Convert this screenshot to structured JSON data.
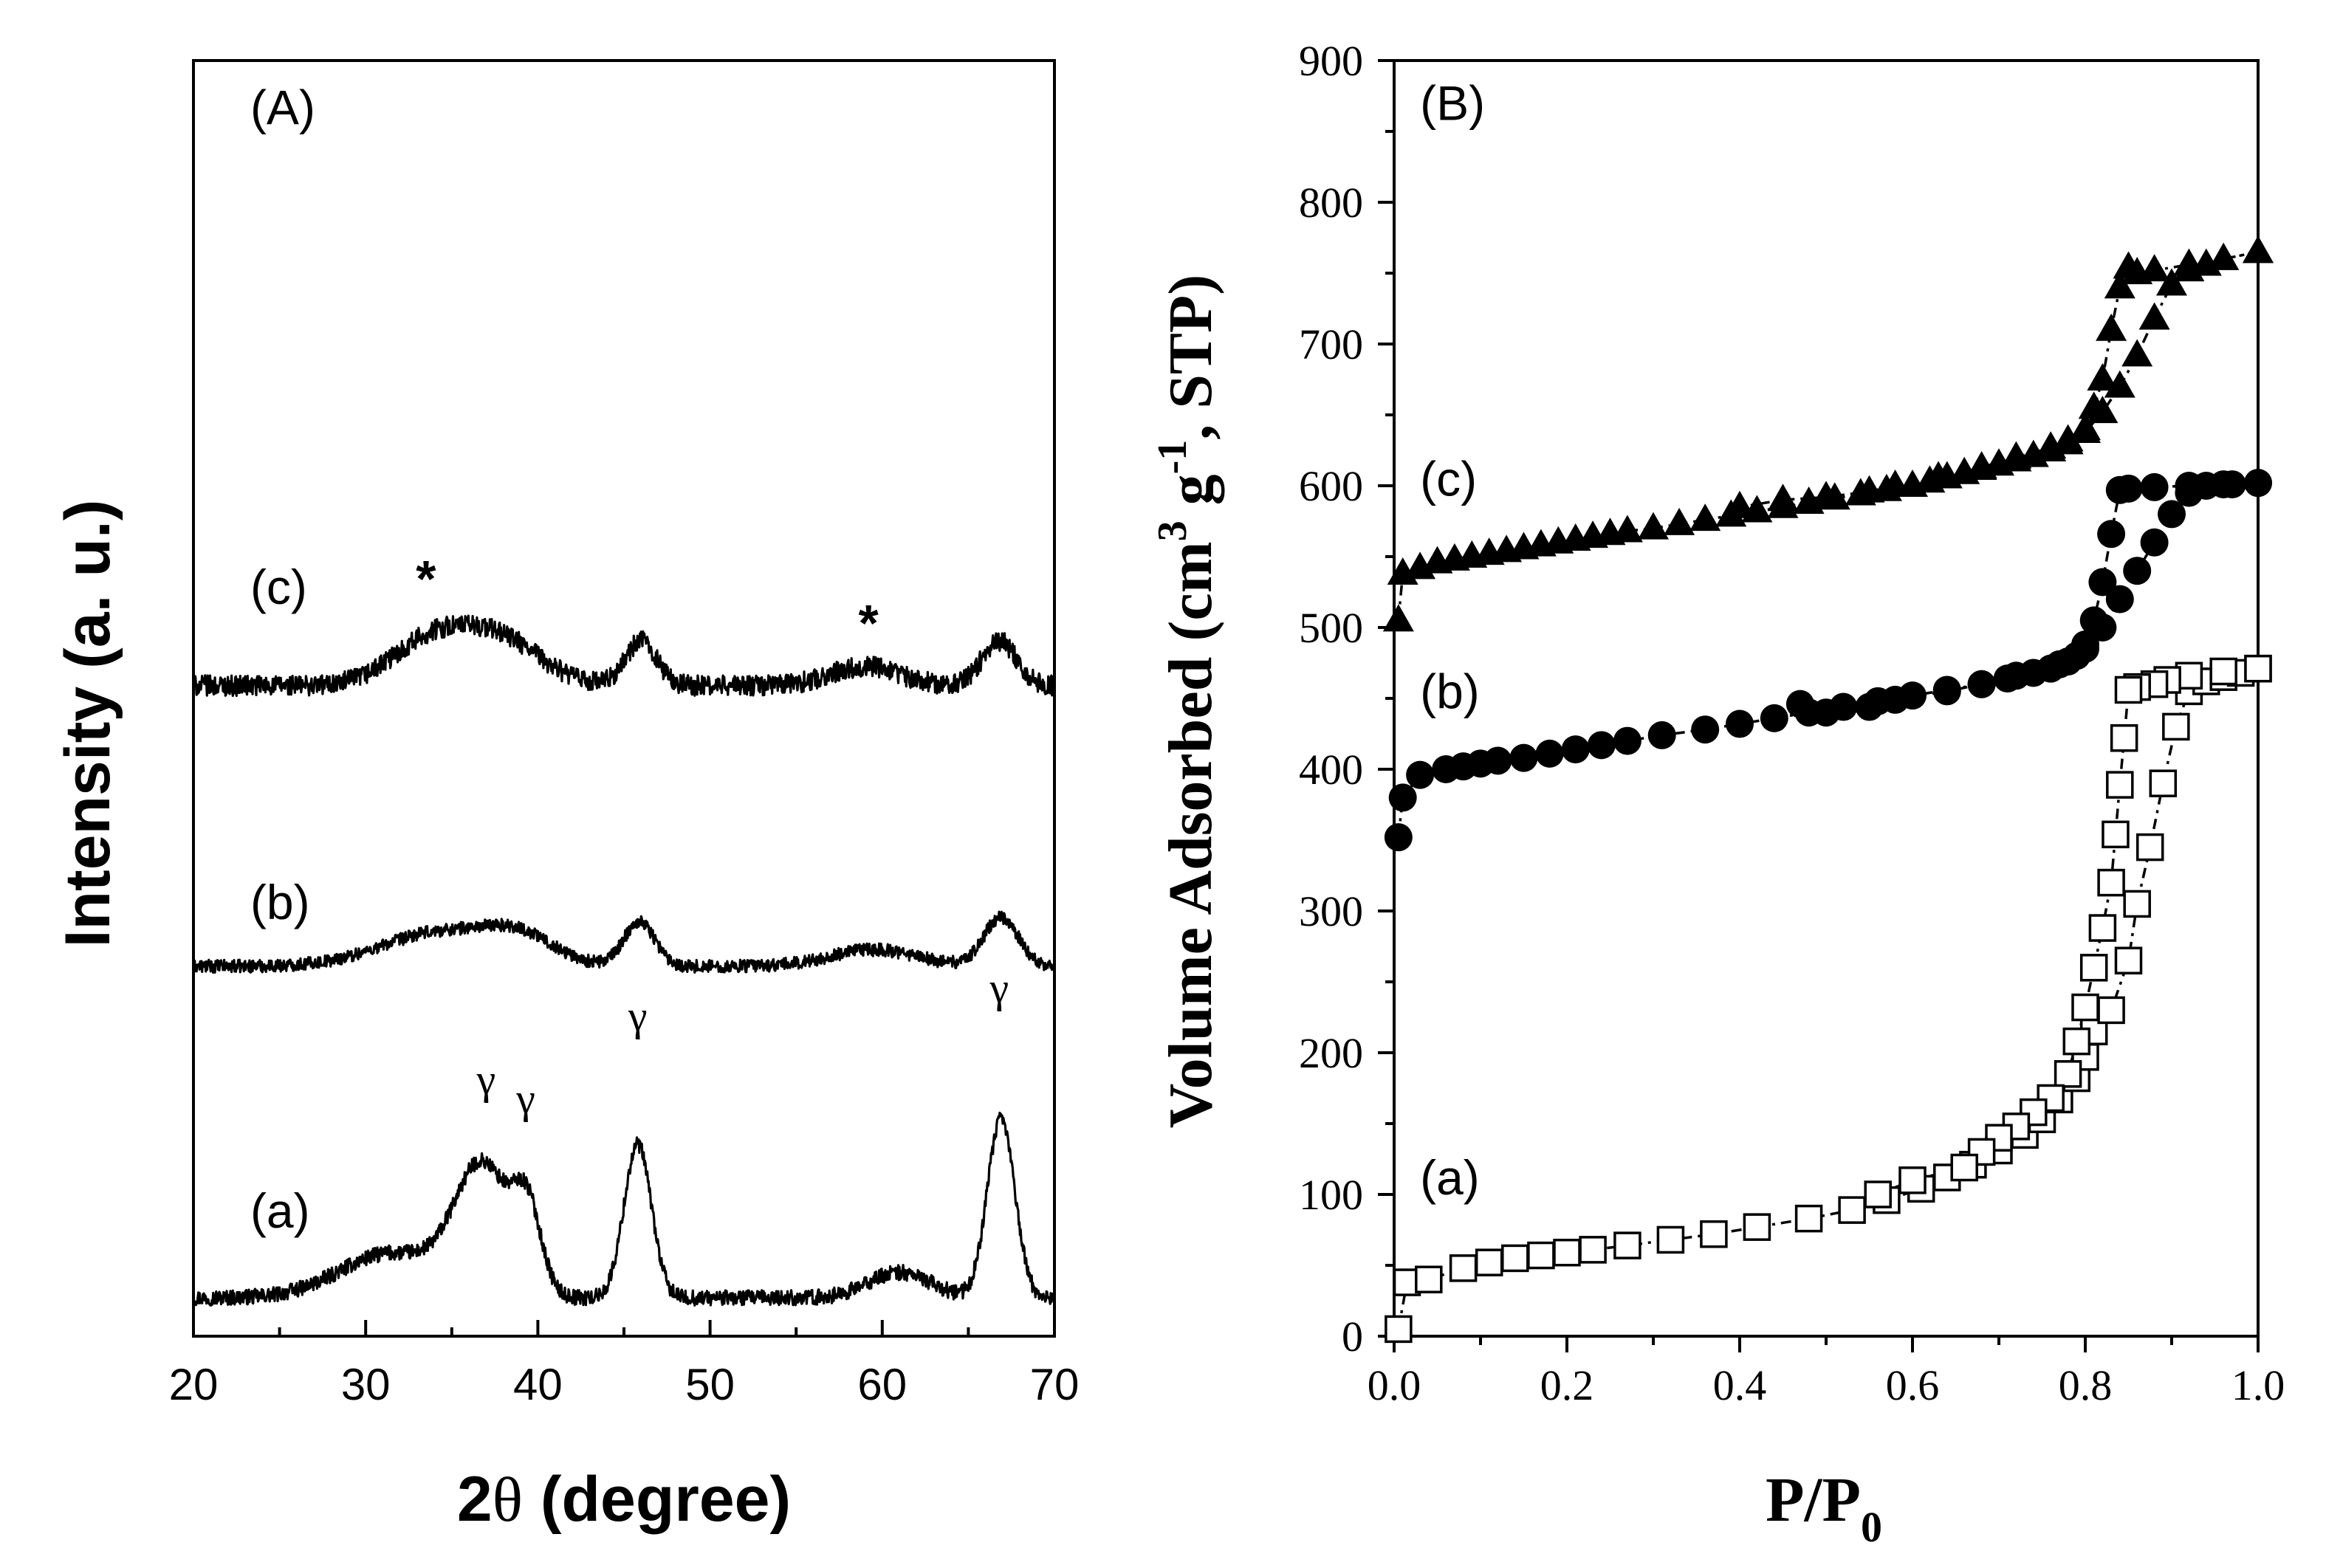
{
  "chart_data": [
    {
      "type": "line",
      "panel": "(A)",
      "xlabel_prefix": "2",
      "xlabel_symbol": "θ",
      "xlabel_suffix": " (degree)",
      "ylabel": "Intensity (a. u.)",
      "xlim": [
        20,
        70
      ],
      "ylim": [
        0,
        1
      ],
      "yticks_shown": false,
      "x_ticks": [
        "20",
        "30",
        "40",
        "50",
        "60",
        "70"
      ],
      "series": [
        {
          "name": "(a)",
          "baseline": 0.03,
          "noise": 0.006,
          "peaks": [
            {
              "center": 31.5,
              "height": 0.035,
              "width": 3.0
            },
            {
              "center": 36.8,
              "height": 0.1,
              "width": 1.6
            },
            {
              "center": 39.4,
              "height": 0.06,
              "width": 0.8
            },
            {
              "center": 45.8,
              "height": 0.12,
              "width": 0.8
            },
            {
              "center": 61.0,
              "height": 0.02,
              "width": 1.8
            },
            {
              "center": 66.9,
              "height": 0.14,
              "width": 0.8
            }
          ]
        },
        {
          "name": "(b)",
          "baseline": 0.29,
          "noise": 0.005,
          "peaks": [
            {
              "center": 34.5,
              "height": 0.027,
              "width": 3.5
            },
            {
              "center": 39.0,
              "height": 0.018,
              "width": 2.0
            },
            {
              "center": 45.9,
              "height": 0.035,
              "width": 0.9
            },
            {
              "center": 59.5,
              "height": 0.013,
              "width": 2.5
            },
            {
              "center": 66.9,
              "height": 0.038,
              "width": 1.0
            }
          ]
        },
        {
          "name": "(c)",
          "baseline": 0.51,
          "noise": 0.008,
          "peaks": [
            {
              "center": 33.5,
              "height": 0.03,
              "width": 2.2
            },
            {
              "center": 37.5,
              "height": 0.038,
              "width": 2.5
            },
            {
              "center": 46.0,
              "height": 0.035,
              "width": 0.9
            },
            {
              "center": 59.0,
              "height": 0.015,
              "width": 2.0
            },
            {
              "center": 66.8,
              "height": 0.035,
              "width": 1.0
            }
          ]
        }
      ],
      "annotations": [
        {
          "text": "γ",
          "x": 37.0,
          "y": 0.19
        },
        {
          "text": "γ",
          "x": 39.3,
          "y": 0.175
        },
        {
          "text": "γ",
          "x": 45.8,
          "y": 0.24
        },
        {
          "text": "γ",
          "x": 66.8,
          "y": 0.262
        },
        {
          "text": "*",
          "x": 33.5,
          "y": 0.58
        },
        {
          "text": "*",
          "x": 59.2,
          "y": 0.545
        }
      ],
      "series_label_x": 23.3,
      "series_label_y": {
        "(a)": 0.085,
        "(b)": 0.327,
        "(c)": 0.574
      },
      "panel_label_pos": {
        "x": 23.3,
        "y": 0.95
      }
    },
    {
      "type": "scatter",
      "panel": "(B)",
      "xlabel": "P/P",
      "xlabel_sub": "0",
      "ylabel_prefix": "Volume Adsorbed (cm",
      "ylabel_sup1": "3",
      "ylabel_mid": " g",
      "ylabel_sup2": "-1",
      "ylabel_suffix": ", STP)",
      "xlim": [
        0.0,
        1.0
      ],
      "ylim": [
        0,
        900
      ],
      "x_ticks": [
        "0.0",
        "0.2",
        "0.4",
        "0.6",
        "0.8",
        "1.0"
      ],
      "y_ticks": [
        "0",
        "100",
        "200",
        "300",
        "400",
        "500",
        "600",
        "700",
        "800",
        "900"
      ],
      "series": [
        {
          "name": "(a)",
          "marker": "open-square",
          "adsorption": {
            "x": [
              0.005,
              0.015,
              0.04,
              0.08,
              0.11,
              0.14,
              0.17,
              0.2,
              0.23,
              0.27,
              0.32,
              0.37,
              0.42,
              0.48,
              0.53,
              0.57,
              0.61,
              0.64,
              0.67,
              0.7,
              0.73,
              0.75,
              0.77,
              0.79,
              0.8,
              0.81,
              0.83,
              0.85,
              0.86,
              0.875,
              0.89,
              0.905,
              0.92,
              0.94,
              0.96,
              0.98,
              1.0
            ],
            "y": [
              5,
              38,
              40,
              48,
              52,
              55,
              57,
              59,
              61,
              64,
              68,
              72,
              77,
              83,
              89,
              96,
              104,
              112,
              121,
              131,
              142,
              153,
              167,
              182,
              197,
              215,
              230,
              265,
              305,
              345,
              390,
              430,
              455,
              462,
              465,
              468,
              471
            ]
          },
          "desorption": {
            "x": [
              1.0,
              0.96,
              0.92,
              0.895,
              0.88,
              0.86,
              0.85,
              0.845,
              0.84,
              0.835,
              0.83,
              0.82,
              0.81,
              0.8,
              0.79,
              0.78,
              0.76,
              0.74,
              0.72,
              0.7,
              0.68,
              0.66,
              0.6,
              0.56
            ],
            "y": [
              471,
              469,
              466,
              463,
              460,
              458,
              456,
              422,
              389,
              354,
              320,
              288,
              260,
              232,
              208,
              185,
              168,
              158,
              148,
              140,
              130,
              119,
              110,
              100
            ]
          }
        },
        {
          "name": "(b)",
          "marker": "filled-circle",
          "adsorption": {
            "x": [
              0.005,
              0.01,
              0.03,
              0.06,
              0.08,
              0.1,
              0.12,
              0.15,
              0.18,
              0.21,
              0.24,
              0.27,
              0.31,
              0.36,
              0.4,
              0.44,
              0.48,
              0.52,
              0.56,
              0.6,
              0.64,
              0.68,
              0.71,
              0.74,
              0.77,
              0.79,
              0.8,
              0.82,
              0.84,
              0.86,
              0.88,
              0.9,
              0.92,
              0.94,
              0.97,
              1.0
            ],
            "y": [
              352,
              380,
              396,
              400,
              402,
              404,
              406,
              408,
              411,
              414,
              417,
              420,
              424,
              428,
              432,
              436,
              440,
              444,
              448,
              452,
              456,
              460,
              464,
              468,
              474,
              480,
              488,
              500,
              520,
              540,
              560,
              580,
              595,
              600,
              601,
              602
            ]
          },
          "desorption": {
            "x": [
              1.0,
              0.96,
              0.92,
              0.88,
              0.85,
              0.84,
              0.83,
              0.82,
              0.81,
              0.8,
              0.78,
              0.76,
              0.72,
              0.68,
              0.64,
              0.58,
              0.55,
              0.5,
              0.47
            ],
            "y": [
              602,
              601,
              600,
              599,
              598,
              597,
              566,
              532,
              505,
              485,
              476,
              471,
              466,
              460,
              455,
              449,
              444,
              440,
              446
            ]
          }
        },
        {
          "name": "(c)",
          "marker": "filled-triangle",
          "adsorption": {
            "x": [
              0.005,
              0.01,
              0.03,
              0.05,
              0.07,
              0.09,
              0.11,
              0.13,
              0.15,
              0.17,
              0.19,
              0.21,
              0.23,
              0.25,
              0.27,
              0.3,
              0.33,
              0.36,
              0.39,
              0.42,
              0.45,
              0.48,
              0.51,
              0.54,
              0.57,
              0.6,
              0.62,
              0.64,
              0.66,
              0.68,
              0.7,
              0.72,
              0.74,
              0.76,
              0.78,
              0.8,
              0.82,
              0.84,
              0.86,
              0.88,
              0.9,
              0.92,
              0.94,
              0.96,
              1.0
            ],
            "y": [
              505,
              538,
              542,
              546,
              548,
              550,
              552,
              554,
              556,
              558,
              560,
              562,
              564,
              566,
              568,
              570,
              573,
              576,
              579,
              582,
              585,
              588,
              591,
              594,
              597,
              600,
              603,
              606,
              609,
              612,
              615,
              618,
              621,
              625,
              630,
              638,
              652,
              670,
              692,
              718,
              742,
              752,
              756,
              760,
              765
            ]
          },
          "desorption": {
            "x": [
              1.0,
              0.96,
              0.92,
              0.88,
              0.86,
              0.85,
              0.84,
              0.83,
              0.82,
              0.81,
              0.8,
              0.78,
              0.76,
              0.72,
              0.68,
              0.63,
              0.58,
              0.55,
              0.5,
              0.45,
              0.4
            ],
            "y": [
              765,
              760,
              756,
              752,
              750,
              754,
              740,
              710,
              675,
              655,
              640,
              632,
              627,
              620,
              613,
              606,
              600,
              596,
              592,
              590,
              585
            ]
          }
        }
      ],
      "series_label_x": 0.03,
      "series_label_y": {
        "(a)": 100,
        "(b)": 443,
        "(c)": 593
      },
      "panel_label_pos": {
        "x": 0.03,
        "y": 858
      }
    }
  ]
}
